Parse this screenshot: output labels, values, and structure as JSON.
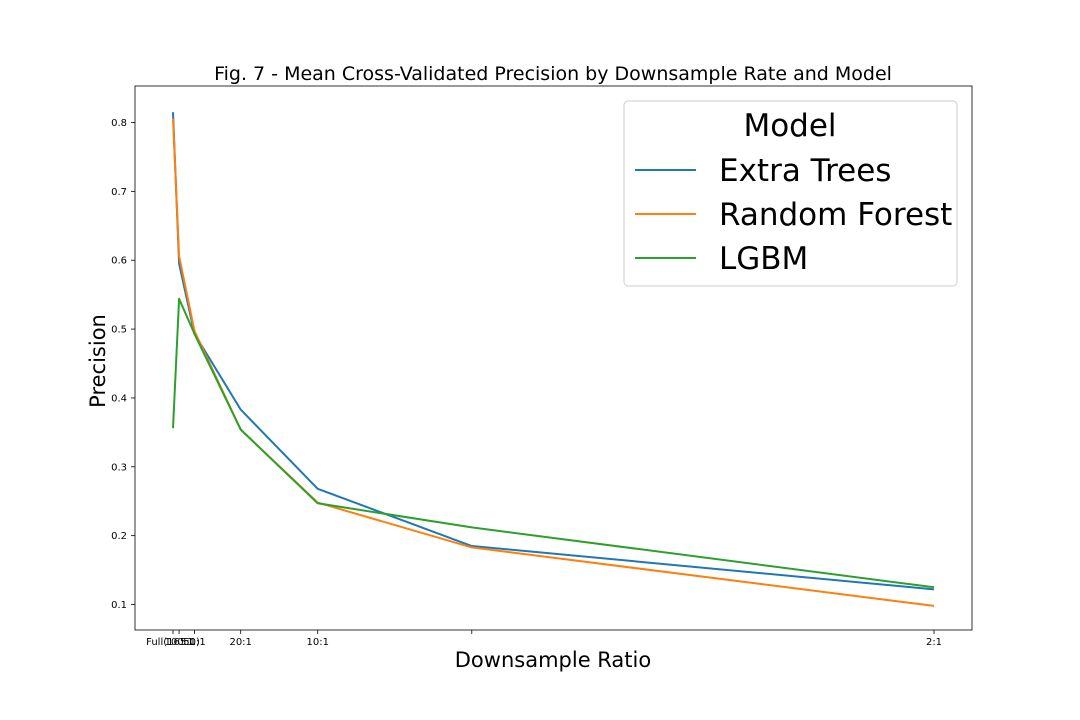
{
  "chart_data": {
    "type": "line",
    "title": "Fig. 7 - Mean Cross-Validated Precision by Downsample Rate and Model",
    "xlabel": "Downsample Ratio",
    "ylabel": "Precision",
    "x_axis_scale": "reciprocal",
    "x": [
      165,
      100,
      50,
      20,
      10,
      5,
      2
    ],
    "x_tick_labels": [
      {
        "value": 165,
        "label": "Full(165:1)"
      },
      {
        "value": 100,
        "label": "100:1"
      },
      {
        "value": 50,
        "label": "50:1"
      },
      {
        "value": 20,
        "label": "20:1"
      },
      {
        "value": 10,
        "label": "10:1"
      },
      {
        "value": 5,
        "label": ""
      },
      {
        "value": 2,
        "label": "2:1"
      }
    ],
    "y_ticks": [
      0.1,
      0.2,
      0.3,
      0.4,
      0.5,
      0.6,
      0.7,
      0.8
    ],
    "y_tick_labels": [
      "0.1",
      "0.2",
      "0.3",
      "0.4",
      "0.5",
      "0.6",
      "0.7",
      "0.8"
    ],
    "ylim": [
      0.063,
      0.853
    ],
    "grid": false,
    "legend": {
      "title": "Model",
      "placement": "top-right"
    },
    "series": [
      {
        "name": "Extra Trees",
        "color": "#1f77b4",
        "values": [
          0.815,
          0.595,
          0.493,
          0.383,
          0.268,
          0.185,
          0.122
        ]
      },
      {
        "name": "Random Forest",
        "color": "#ff7f0e",
        "values": [
          0.806,
          0.606,
          0.497,
          0.354,
          0.248,
          0.183,
          0.098
        ]
      },
      {
        "name": "LGBM",
        "color": "#2ca02c",
        "values": [
          0.356,
          0.544,
          0.493,
          0.354,
          0.247,
          0.212,
          0.125
        ]
      }
    ]
  }
}
